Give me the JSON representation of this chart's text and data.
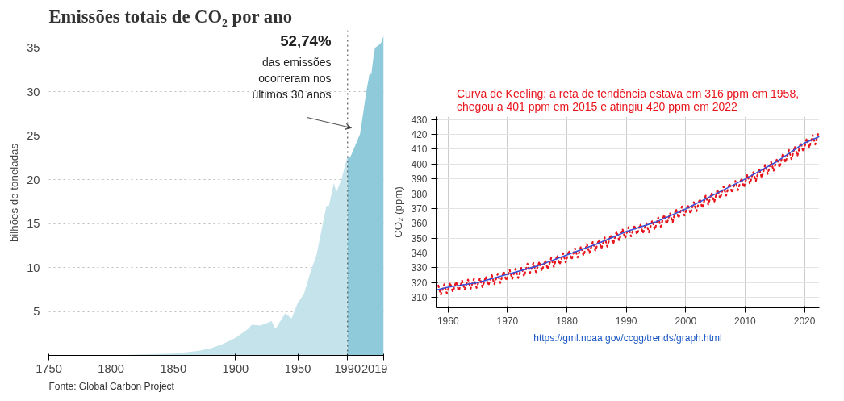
{
  "chart_data": [
    {
      "type": "area",
      "title": "Emissões totais de CO₂ por ano",
      "ylabel": "bilhões de toneladas",
      "xlim": [
        1750,
        2019
      ],
      "ylim": [
        0,
        37
      ],
      "xticks": [
        1750,
        1800,
        1850,
        1900,
        1950,
        1990,
        2019
      ],
      "yticks": [
        5,
        10,
        15,
        20,
        25,
        30,
        35
      ],
      "grid": "y",
      "series": [
        {
          "color": "#c5e3ea",
          "x": [
            1750,
            1800,
            1850,
            1870,
            1880,
            1890,
            1900,
            1910,
            1913,
            1920,
            1929,
            1932,
            1940,
            1945,
            1950,
            1955,
            1960,
            1965,
            1970,
            1973,
            1975,
            1979,
            1981,
            1985,
            1990
          ],
          "values": [
            0.0,
            0.0,
            0.2,
            0.5,
            0.8,
            1.3,
            2.0,
            3.0,
            3.5,
            3.4,
            3.9,
            3.0,
            4.8,
            4.2,
            6.0,
            7.0,
            9.4,
            11.4,
            14.9,
            17.0,
            17.0,
            19.6,
            18.6,
            20.0,
            22.7
          ]
        },
        {
          "color": "#8ecad9",
          "x": [
            1990,
            1992,
            1995,
            2000,
            2003,
            2005,
            2008,
            2009,
            2011,
            2012,
            2015,
            2017,
            2019
          ],
          "values": [
            22.7,
            22.5,
            23.5,
            25.2,
            28.0,
            30.0,
            32.3,
            31.9,
            34.2,
            35.0,
            35.3,
            35.6,
            36.4
          ]
        }
      ],
      "ref_lines": [
        {
          "axis": "x",
          "value": 1990,
          "label": null,
          "color": "#555555",
          "line_style": "dotted"
        }
      ],
      "annotations": [
        "52,74%\ndas emissões\nocorreram nos\núltimos 30 anos",
        "Fonte: Global Carbon Project"
      ]
    },
    {
      "type": "line",
      "title": "Curva de Keeling: a reta de tendência estava em 316 ppm em 1958,\nchegou a 401 ppm em 2015  e  atingiu 420 ppm em 2022",
      "ylabel": "CO₂ (ppm)",
      "xlim": [
        1958,
        2022.5
      ],
      "ylim": [
        303,
        432
      ],
      "xticks": [
        1960,
        1970,
        1980,
        1990,
        2000,
        2010,
        2020
      ],
      "yticks": [
        310,
        320,
        330,
        340,
        350,
        360,
        370,
        380,
        390,
        400,
        410,
        420,
        430
      ],
      "grid": true,
      "series": [
        {
          "color": "#e8141c",
          "line_style": "dotted",
          "x": [
            1958.37,
            1958.8,
            1959.37,
            1959.8,
            1960.37,
            1960.8,
            1961.37,
            1961.8,
            1962.37,
            1962.8,
            1963.37,
            1963.8,
            1964.37,
            1964.8,
            1965.37,
            1965.8,
            1966.37,
            1966.8,
            1967.37,
            1967.8,
            1968.37,
            1968.8,
            1969.37,
            1969.8,
            1970.37,
            1970.8,
            1971.37,
            1971.8,
            1972.37,
            1972.8,
            1973.37,
            1973.8,
            1974.37,
            1974.8,
            1975.37,
            1975.8,
            1976.37,
            1976.8,
            1977.37,
            1977.8,
            1978.37,
            1978.8,
            1979.37,
            1979.8,
            1980.37,
            1980.8,
            1981.37,
            1981.8,
            1982.37,
            1982.8,
            1983.37,
            1983.8,
            1984.37,
            1984.8,
            1985.37,
            1985.8,
            1986.37,
            1986.8,
            1987.37,
            1987.8,
            1988.37,
            1988.8,
            1989.37,
            1989.8,
            1990.37,
            1990.8,
            1991.37,
            1991.8,
            1992.37,
            1992.8,
            1993.37,
            1993.8,
            1994.37,
            1994.8,
            1995.37,
            1995.8,
            1996.37,
            1996.8,
            1997.37,
            1997.8,
            1998.37,
            1998.8,
            1999.37,
            1999.8,
            2000.37,
            2000.8,
            2001.37,
            2001.8,
            2002.37,
            2002.8,
            2003.37,
            2003.8,
            2004.37,
            2004.8,
            2005.37,
            2005.8,
            2006.37,
            2006.8,
            2007.37,
            2007.8,
            2008.37,
            2008.8,
            2009.37,
            2009.8,
            2010.37,
            2010.8,
            2011.37,
            2011.8,
            2012.37,
            2012.8,
            2013.37,
            2013.8,
            2014.37,
            2014.8,
            2015.37,
            2015.8,
            2016.37,
            2016.8,
            2017.37,
            2017.8,
            2018.37,
            2018.8,
            2019.37,
            2019.8,
            2020.37,
            2020.8,
            2021.37,
            2021.8,
            2022.37
          ],
          "values": [
            318.0,
            311.8,
            318.9,
            312.7,
            319.9,
            313.7,
            320.6,
            314.4,
            321.4,
            315.2,
            322.0,
            315.8,
            322.6,
            316.4,
            323.0,
            316.8,
            324.3,
            318.1,
            325.1,
            318.9,
            326.0,
            319.8,
            327.6,
            321.4,
            328.6,
            322.4,
            329.3,
            323.1,
            330.4,
            324.2,
            332.7,
            326.5,
            333.2,
            327.0,
            334.1,
            327.9,
            335.0,
            328.8,
            336.8,
            330.6,
            338.4,
            332.2,
            339.8,
            333.6,
            341.7,
            335.5,
            343.1,
            336.9,
            344.4,
            338.2,
            346.0,
            339.8,
            347.6,
            341.4,
            349.0,
            342.8,
            350.4,
            344.2,
            352.2,
            346.0,
            354.6,
            348.4,
            356.1,
            349.9,
            357.4,
            351.2,
            358.7,
            352.5,
            359.5,
            353.3,
            360.1,
            353.9,
            361.9,
            355.7,
            363.9,
            357.7,
            365.7,
            359.5,
            366.8,
            360.6,
            369.7,
            363.5,
            371.4,
            365.2,
            372.7,
            366.5,
            374.3,
            368.1,
            376.5,
            370.3,
            378.8,
            372.6,
            380.5,
            374.3,
            382.8,
            376.6,
            384.9,
            378.7,
            386.8,
            380.6,
            388.6,
            382.4,
            390.4,
            384.2,
            392.9,
            386.7,
            394.6,
            388.4,
            396.9,
            390.7,
            399.5,
            393.3,
            401.6,
            395.4,
            403.8,
            397.6,
            407.2,
            401.0,
            409.5,
            403.3,
            411.7,
            405.5,
            414.4,
            408.2,
            417.2,
            411.0,
            419.4,
            413.2,
            421.5
          ]
        },
        {
          "color": "#3a4fd6",
          "line_style": "solid",
          "x": [
            1958,
            1960,
            1965,
            1970,
            1975,
            1980,
            1985,
            1990,
            1995,
            2000,
            2005,
            2010,
            2015,
            2020,
            2022.5
          ],
          "values": [
            315.0,
            316.9,
            320.0,
            325.6,
            331.1,
            338.7,
            346.0,
            354.4,
            360.9,
            369.7,
            379.8,
            389.9,
            400.8,
            414.2,
            418.5
          ]
        }
      ],
      "annotations": [
        "https://gml.noaa.gov/ccgg/trends/graph.html"
      ]
    }
  ]
}
